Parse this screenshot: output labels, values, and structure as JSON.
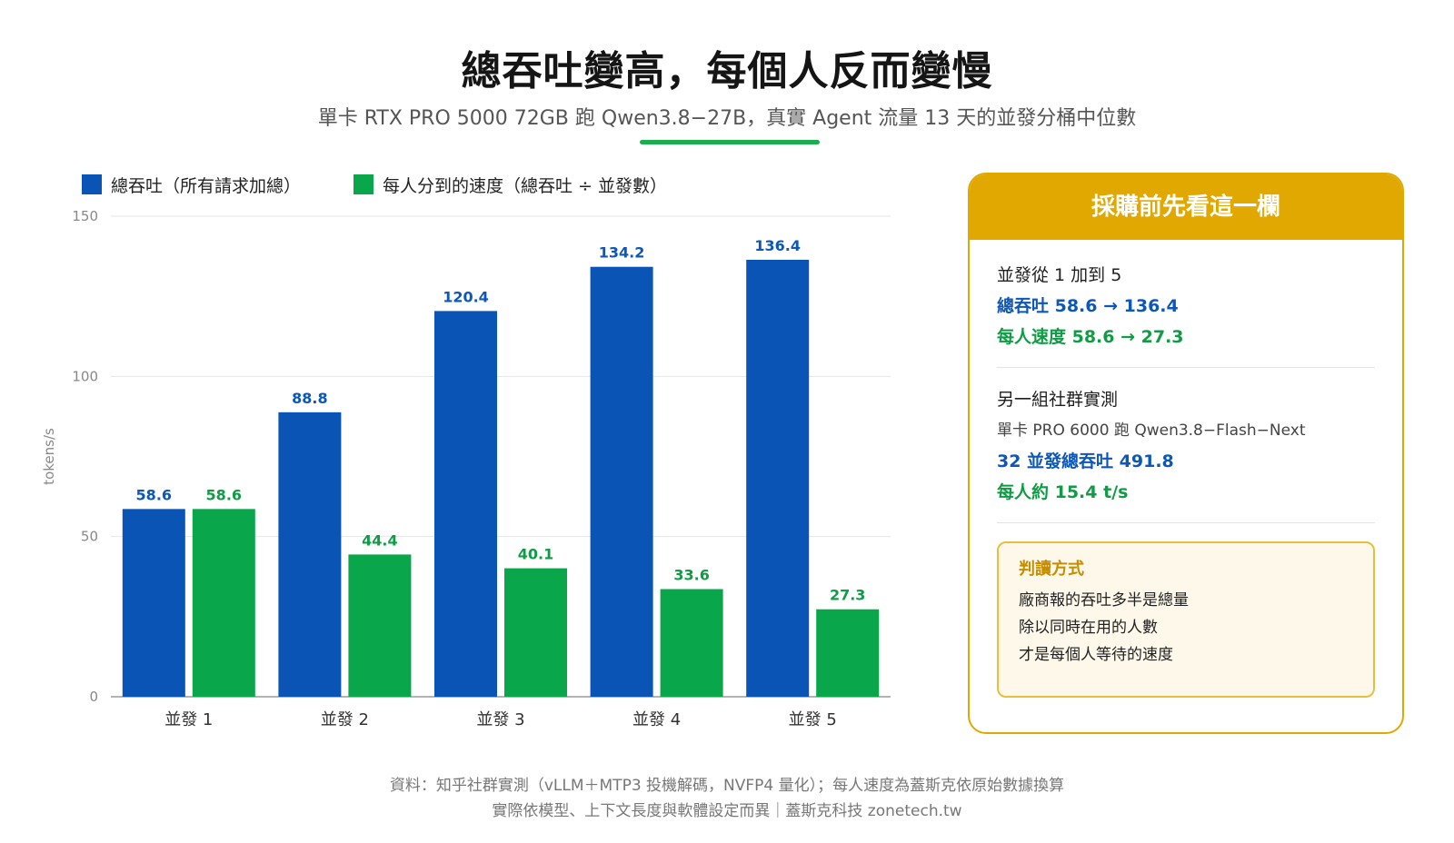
{
  "header": {
    "title": "總吞吐變高，每個人反而變慢",
    "subtitle": "單卡 RTX PRO 5000 72GB 跑 Qwen3.8−27B，真實 Agent 流量 13 天的並發分桶中位數"
  },
  "colors": {
    "blue": "#0a54b6",
    "green": "#0aa64b",
    "gold": "#e0a800",
    "accent_rule": "#1aae4c"
  },
  "chart_data": {
    "type": "bar",
    "categories": [
      "並發 1",
      "並發 2",
      "並發 3",
      "並發 4",
      "並發 5"
    ],
    "series": [
      {
        "name": "總吞吐（所有請求加總）",
        "values": [
          58.6,
          88.8,
          120.4,
          134.2,
          136.4
        ]
      },
      {
        "name": "每人分到的速度（總吞吐 ÷ 並發數）",
        "values": [
          58.6,
          44.4,
          40.1,
          33.6,
          27.3
        ]
      }
    ],
    "title": "總吞吐變高，每個人反而變慢",
    "ylabel": "tokens/s",
    "xlabel": "",
    "ylim": [
      0,
      150
    ],
    "yticks": [
      0,
      50,
      100,
      150
    ],
    "grid": true,
    "legend": "top-left"
  },
  "panel": {
    "title": "採購前先看這一欄",
    "s1_line1": "並發從 1 加到 5",
    "s1_line2": "總吞吐 58.6 → 136.4",
    "s1_line3": "每人速度 58.6 → 27.3",
    "s2_line1": "另一組社群實測",
    "s2_line2": "單卡 PRO 6000 跑 Qwen3.8−Flash−Next",
    "s2_line3": "32 並發總吞吐 491.8",
    "s2_line4": "每人約 15.4 t/s",
    "note_title": "判讀方式",
    "note_line1": "廠商報的吞吐多半是總量",
    "note_line2": "除以同時在用的人數",
    "note_line3": "才是每個人等待的速度"
  },
  "footer": {
    "line1": "資料：知乎社群實測（vLLM＋MTP3 投機解碼，NVFP4 量化）；每人速度為蓋斯克依原始數據換算",
    "line2": "實際依模型、上下文長度與軟體設定而異｜蓋斯克科技 zonetech.tw"
  }
}
